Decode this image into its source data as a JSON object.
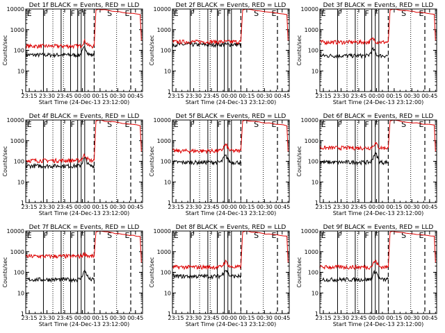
{
  "figure": {
    "xlabel": "Start Time (24-Dec-13 23:12:00)",
    "ylabel": "Counts/sec",
    "x_tick_labels": [
      "23:15",
      "23:30",
      "23:45",
      "00:00",
      "00:15",
      "00:30",
      "00:45"
    ],
    "y_tick_labels": [
      "1",
      "10",
      "100",
      "1000",
      "10000"
    ],
    "colors": {
      "events": "#000000",
      "lld": "#dd0000"
    }
  },
  "chart_data": [
    {
      "type": "line",
      "title": "Det 1f BLACK = Events, RED = LLD",
      "flags": [
        "E",
        "F",
        "F",
        "F",
        "F",
        "S",
        "E"
      ],
      "xlim_min": [
        0,
        99
      ],
      "ylim": [
        1,
        10000
      ],
      "data_end_min": 58,
      "series": [
        {
          "name": "Events",
          "level": 60,
          "bump": [
            50,
            2.2
          ]
        },
        {
          "name": "LLD",
          "level": 160,
          "bump": [
            50,
            1.7
          ],
          "rise_min": 58
        }
      ]
    },
    {
      "type": "line",
      "title": "Det 2f BLACK = Events, RED = LLD",
      "flags": [
        "E",
        "F",
        "F",
        "F",
        "S",
        "E"
      ],
      "xlim_min": [
        0,
        99
      ],
      "ylim": [
        1,
        10000
      ],
      "data_end_min": 58,
      "series": [
        {
          "name": "Events",
          "level": 190,
          "bump": null
        },
        {
          "name": "LLD",
          "level": 260,
          "bump": null,
          "rise_min": 58
        }
      ]
    },
    {
      "type": "line",
      "title": "Det 3f BLACK = Events, RED = LLD",
      "flags": [
        "E",
        "F",
        "F",
        "F",
        "S",
        "E"
      ],
      "xlim_min": [
        0,
        99
      ],
      "ylim": [
        1,
        10000
      ],
      "data_end_min": 58,
      "series": [
        {
          "name": "Events",
          "level": 55,
          "bump": [
            45,
            2.0
          ]
        },
        {
          "name": "LLD",
          "level": 250,
          "bump": [
            45,
            1.4
          ],
          "rise_min": 58
        }
      ]
    },
    {
      "type": "line",
      "title": "Det 4f BLACK = Events, RED = LLD",
      "flags": [
        "E",
        "F",
        "F",
        "F",
        "S",
        "E"
      ],
      "xlim_min": [
        0,
        99
      ],
      "ylim": [
        1,
        10000
      ],
      "data_end_min": 58,
      "series": [
        {
          "name": "Events",
          "level": 60,
          "bump": [
            50,
            2.3
          ]
        },
        {
          "name": "LLD",
          "level": 110,
          "bump": [
            50,
            1.8
          ],
          "rise_min": 58
        }
      ]
    },
    {
      "type": "line",
      "title": "Det 5f BLACK = Events, RED = LLD",
      "flags": [
        "E",
        "F",
        "F",
        "F",
        "S",
        "E"
      ],
      "xlim_min": [
        0,
        99
      ],
      "ylim": [
        1,
        10000
      ],
      "data_end_min": 58,
      "series": [
        {
          "name": "Events",
          "level": 90,
          "bump": [
            45,
            2.0
          ]
        },
        {
          "name": "LLD",
          "level": 320,
          "bump": [
            45,
            1.9
          ],
          "rise_min": 58
        }
      ]
    },
    {
      "type": "line",
      "title": "Det 6f BLACK = Events, RED = LLD",
      "flags": [
        "E",
        "F",
        "F",
        "F",
        "S",
        "E"
      ],
      "xlim_min": [
        0,
        99
      ],
      "ylim": [
        1,
        10000
      ],
      "data_end_min": 58,
      "series": [
        {
          "name": "Events",
          "level": 90,
          "bump": [
            47,
            2.6
          ]
        },
        {
          "name": "LLD",
          "level": 450,
          "bump": [
            47,
            1.6
          ],
          "rise_min": 58
        }
      ]
    },
    {
      "type": "line",
      "title": "Det 7f BLACK = Events, RED = LLD",
      "flags": [
        "E",
        "F",
        "F",
        "F",
        "S",
        "E"
      ],
      "xlim_min": [
        0,
        99
      ],
      "ylim": [
        1,
        10000
      ],
      "data_end_min": 58,
      "series": [
        {
          "name": "Events",
          "level": 45,
          "bump": [
            50,
            2.5
          ]
        },
        {
          "name": "LLD",
          "level": 600,
          "bump": [
            50,
            1.3
          ],
          "rise_min": 58
        }
      ]
    },
    {
      "type": "line",
      "title": "Det 8f BLACK = Events, RED = LLD",
      "flags": [
        "E",
        "F",
        "F",
        "F",
        "S",
        "E"
      ],
      "xlim_min": [
        0,
        99
      ],
      "ylim": [
        1,
        10000
      ],
      "data_end_min": 58,
      "series": [
        {
          "name": "Events",
          "level": 65,
          "bump": [
            45,
            2.0
          ]
        },
        {
          "name": "LLD",
          "level": 180,
          "bump": [
            45,
            1.8
          ],
          "rise_min": 58
        }
      ]
    },
    {
      "type": "line",
      "title": "Det 9f BLACK = Events, RED = LLD",
      "flags": [
        "E",
        "F",
        "F",
        "F",
        "S",
        "E"
      ],
      "xlim_min": [
        0,
        99
      ],
      "ylim": [
        1,
        10000
      ],
      "data_end_min": 58,
      "series": [
        {
          "name": "Events",
          "level": 45,
          "bump": [
            47,
            2.4
          ]
        },
        {
          "name": "LLD",
          "level": 180,
          "bump": [
            47,
            1.9
          ],
          "rise_min": 58
        }
      ]
    }
  ],
  "events": {
    "solid_min": [
      15,
      30,
      38,
      44,
      47,
      50
    ],
    "dotted_min": [
      23,
      32,
      77
    ],
    "dashed_min": [
      58,
      89
    ]
  }
}
